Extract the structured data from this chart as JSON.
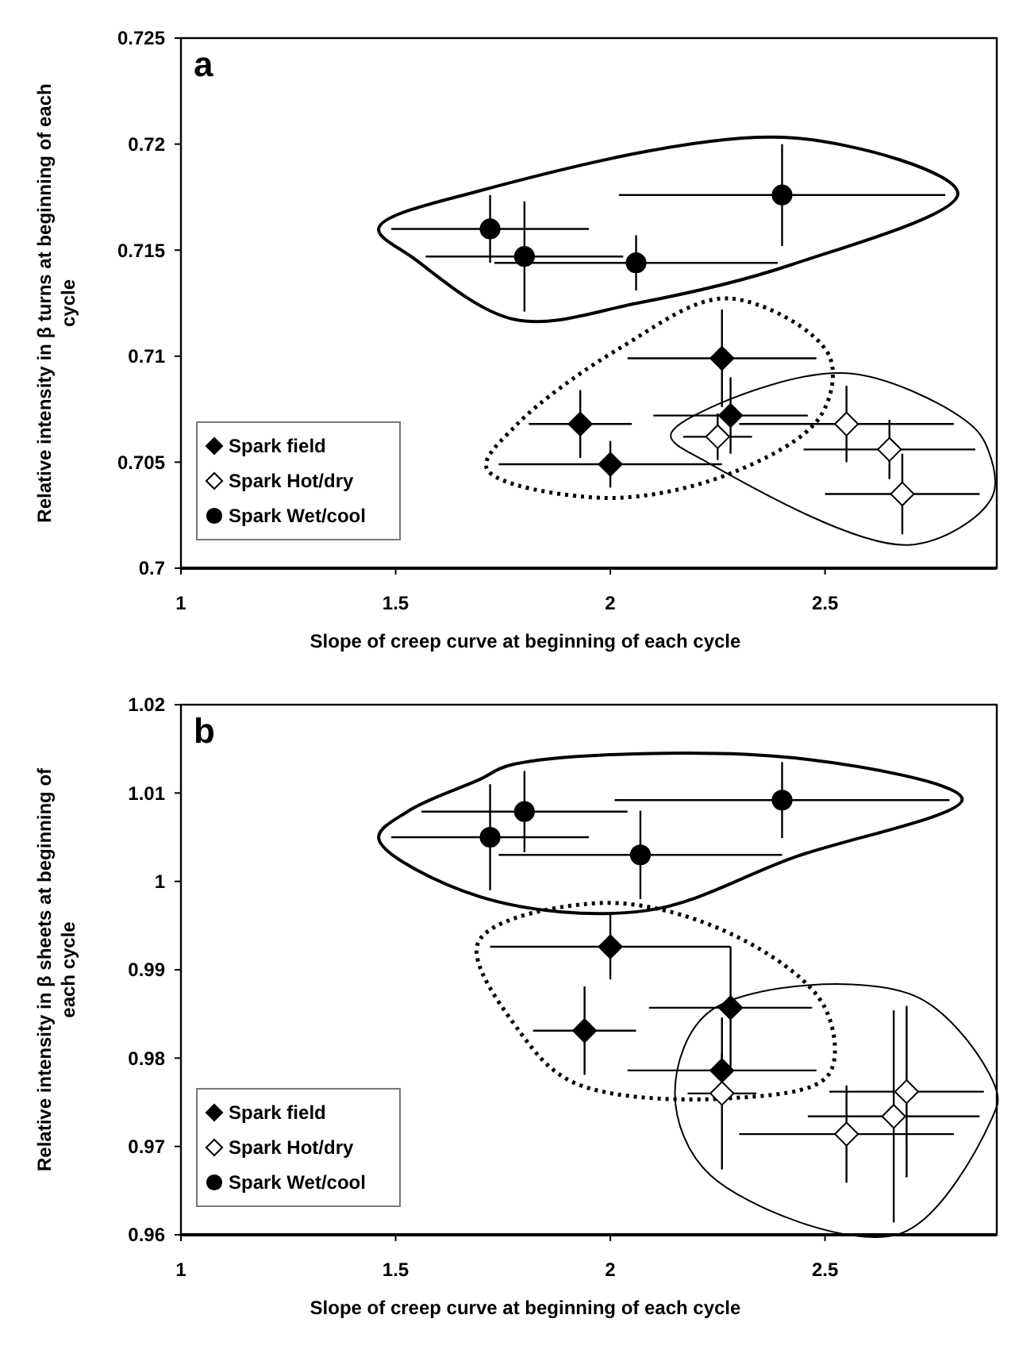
{
  "chart_data": [
    {
      "type": "scatter",
      "title": "a",
      "xlabel": "Slope of creep curve at beginning of each cycle",
      "ylabel": "Relative intensity in β turns at beginning of each cycle",
      "xlim": [
        1,
        2.9
      ],
      "xticks": [
        1,
        1.5,
        2,
        2.5
      ],
      "ylim": [
        0.7,
        0.725
      ],
      "yticks": [
        0.7,
        0.705,
        0.71,
        0.715,
        0.72,
        0.725
      ],
      "legend": "bottom left",
      "grid": false,
      "series": [
        {
          "name": "Spark field",
          "color": "#000000",
          "marker": "diamond",
          "x": [
            1.93,
            2.0,
            2.26,
            2.28
          ],
          "values": [
            0.7068,
            0.7049,
            0.7099,
            0.7072
          ],
          "xerrors": [
            0.12,
            0.26,
            0.22,
            0.18
          ],
          "errors": [
            0.0016,
            0.0011,
            0.0023,
            0.0018
          ]
        },
        {
          "name": "Spark Hot/dry",
          "color": "#ffffff",
          "marker": "diamond",
          "x": [
            2.25,
            2.55,
            2.65,
            2.68
          ],
          "values": [
            0.7062,
            0.7068,
            0.7056,
            0.7035
          ],
          "xerrors": [
            0.08,
            0.25,
            0.2,
            0.18
          ],
          "errors": [
            0.0011,
            0.0018,
            0.0014,
            0.0019
          ]
        },
        {
          "name": "Spark Wet/cool",
          "color": "#000000",
          "marker": "circle",
          "x": [
            1.72,
            1.8,
            2.06,
            2.4
          ],
          "values": [
            0.716,
            0.7147,
            0.7144,
            0.7176
          ],
          "xerrors": [
            0.23,
            0.23,
            0.33,
            0.38
          ],
          "errors": [
            0.0016,
            0.0026,
            0.0013,
            0.0024
          ]
        }
      ]
    },
    {
      "type": "scatter",
      "title": "b",
      "xlabel": "Slope of creep curve at beginning of each cycle",
      "ylabel": "Relative intensity in β sheets at beginning of each cycle",
      "xlim": [
        1,
        2.9
      ],
      "xticks": [
        1,
        1.5,
        2,
        2.5
      ],
      "ylim": [
        0.96,
        1.02
      ],
      "yticks": [
        0.96,
        0.97,
        0.98,
        0.99,
        1,
        1.01,
        1.02
      ],
      "legend": "bottom left",
      "grid": false,
      "series": [
        {
          "name": "Spark field",
          "color": "#000000",
          "marker": "diamond",
          "x": [
            1.94,
            2.0,
            2.26,
            2.28
          ],
          "values": [
            0.9831,
            0.9926,
            0.9786,
            0.9857
          ],
          "xerrors": [
            0.12,
            0.28,
            0.22,
            0.19
          ],
          "errors": [
            0.005,
            0.0037,
            0.002,
            0.0069
          ]
        },
        {
          "name": "Spark Hot/dry",
          "color": "#ffffff",
          "marker": "diamond",
          "x": [
            2.26,
            2.55,
            2.66,
            2.69
          ],
          "values": [
            0.976,
            0.9714,
            0.9734,
            0.9762
          ],
          "xerrors": [
            0.08,
            0.25,
            0.2,
            0.18
          ],
          "errors": [
            0.0086,
            0.0055,
            0.012,
            0.0097
          ]
        },
        {
          "name": "Spark Wet/cool",
          "color": "#000000",
          "marker": "circle",
          "x": [
            1.72,
            1.8,
            2.07,
            2.4
          ],
          "values": [
            1.005,
            1.0079,
            1.003,
            1.0092
          ],
          "xerrors": [
            0.23,
            0.24,
            0.33,
            0.39
          ],
          "errors": [
            0.006,
            0.0046,
            0.005,
            0.0043
          ]
        }
      ]
    }
  ]
}
